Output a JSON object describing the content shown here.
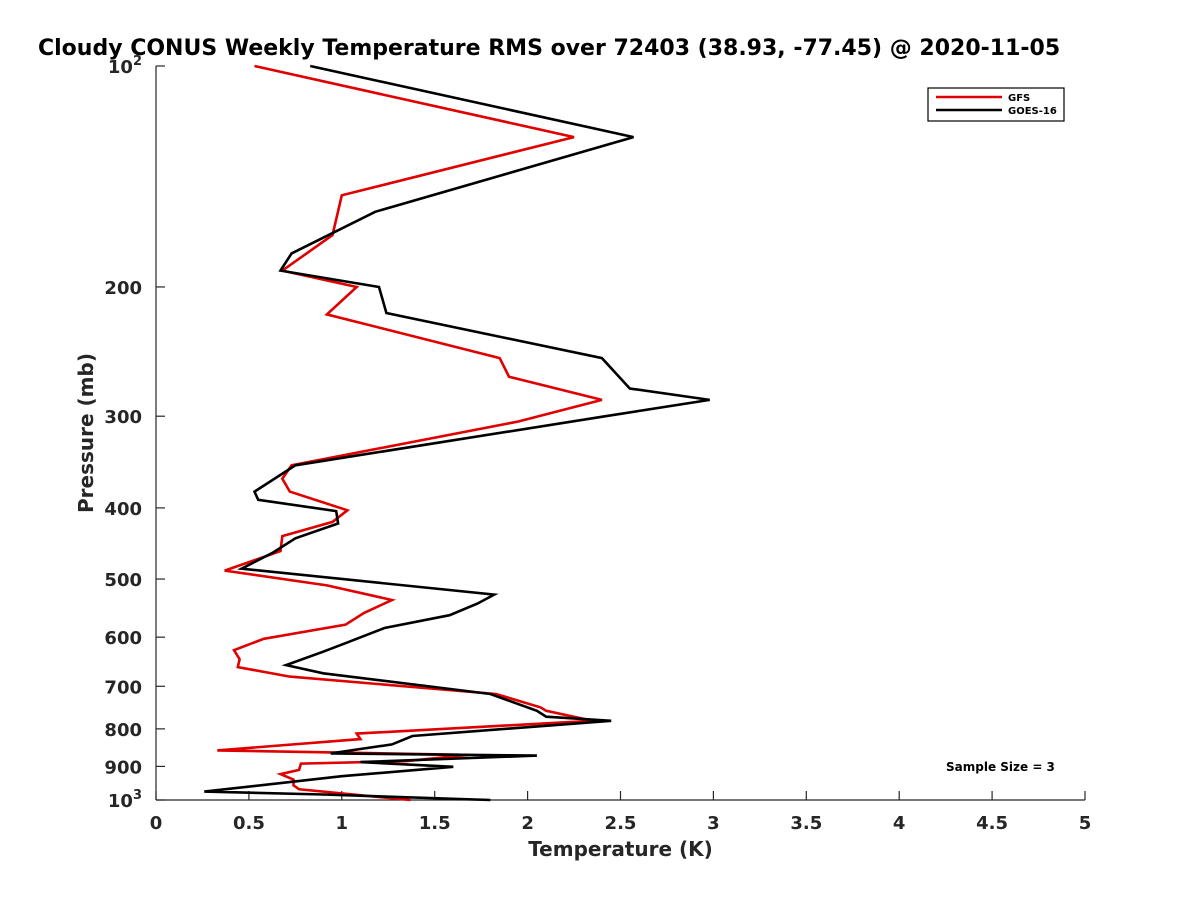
{
  "chart_data": {
    "type": "line",
    "title": "Cloudy CONUS Weekly Temperature RMS over 72403 (38.93, -77.45) @ 2020-11-05",
    "xlabel": "Temperature (K)",
    "ylabel": "Pressure (mb)",
    "xlim": [
      0,
      5
    ],
    "ylim": [
      100,
      1000
    ],
    "yscale": "log",
    "y_reversed": true,
    "x_ticks": [
      "0",
      "0.5",
      "1",
      "1.5",
      "2",
      "2.5",
      "3",
      "3.5",
      "4",
      "4.5",
      "5"
    ],
    "y_ticks": [
      {
        "value": 100,
        "base": "10",
        "exp": "2"
      },
      {
        "value": 200,
        "label": "200"
      },
      {
        "value": 300,
        "label": "300"
      },
      {
        "value": 400,
        "label": "400"
      },
      {
        "value": 500,
        "label": "500"
      },
      {
        "value": 600,
        "label": "600"
      },
      {
        "value": 700,
        "label": "700"
      },
      {
        "value": 800,
        "label": "800"
      },
      {
        "value": 900,
        "label": "900"
      },
      {
        "value": 1000,
        "base": "10",
        "exp": "3"
      }
    ],
    "legend_position": "top-right",
    "annotation": "Sample Size = 3",
    "series": [
      {
        "name": "GFS",
        "color": "#e00000",
        "points": [
          [
            0.53,
            100
          ],
          [
            2.25,
            125
          ],
          [
            1.0,
            150
          ],
          [
            0.95,
            170
          ],
          [
            0.68,
            190
          ],
          [
            1.08,
            200
          ],
          [
            0.92,
            218
          ],
          [
            1.85,
            250
          ],
          [
            1.9,
            265
          ],
          [
            2.4,
            285
          ],
          [
            1.95,
            305
          ],
          [
            0.73,
            350
          ],
          [
            0.68,
            365
          ],
          [
            0.72,
            380
          ],
          [
            1.03,
            403
          ],
          [
            0.95,
            418
          ],
          [
            0.68,
            437
          ],
          [
            0.67,
            458
          ],
          [
            0.37,
            487
          ],
          [
            0.92,
            510
          ],
          [
            1.27,
            534
          ],
          [
            1.12,
            556
          ],
          [
            1.02,
            577
          ],
          [
            0.58,
            603
          ],
          [
            0.42,
            625
          ],
          [
            0.45,
            643
          ],
          [
            0.44,
            659
          ],
          [
            0.72,
            679
          ],
          [
            1.83,
            717
          ],
          [
            2.07,
            748
          ],
          [
            2.1,
            756
          ],
          [
            2.35,
            780
          ],
          [
            1.08,
            812
          ],
          [
            1.1,
            826
          ],
          [
            0.33,
            856
          ],
          [
            1.68,
            868
          ],
          [
            1.35,
            885
          ],
          [
            0.78,
            892
          ],
          [
            0.77,
            910
          ],
          [
            0.67,
            922
          ],
          [
            0.74,
            938
          ],
          [
            0.74,
            955
          ],
          [
            0.77,
            967
          ],
          [
            1.37,
            1000
          ]
        ]
      },
      {
        "name": "GOES-16",
        "color": "#000000",
        "points": [
          [
            0.83,
            100
          ],
          [
            2.57,
            125
          ],
          [
            1.18,
            158
          ],
          [
            0.73,
            180
          ],
          [
            0.67,
            190
          ],
          [
            1.2,
            200
          ],
          [
            1.24,
            217
          ],
          [
            2.4,
            250
          ],
          [
            2.55,
            275
          ],
          [
            2.98,
            285
          ],
          [
            2.42,
            300
          ],
          [
            0.75,
            350
          ],
          [
            0.53,
            380
          ],
          [
            0.55,
            390
          ],
          [
            0.97,
            404
          ],
          [
            0.98,
            420
          ],
          [
            0.75,
            440
          ],
          [
            0.63,
            460
          ],
          [
            0.46,
            484
          ],
          [
            1.82,
            525
          ],
          [
            1.73,
            540
          ],
          [
            1.58,
            560
          ],
          [
            1.23,
            583
          ],
          [
            1.03,
            610
          ],
          [
            0.9,
            628
          ],
          [
            0.7,
            655
          ],
          [
            0.9,
            672
          ],
          [
            1.8,
            717
          ],
          [
            2.05,
            756
          ],
          [
            2.1,
            770
          ],
          [
            2.45,
            780
          ],
          [
            1.38,
            818
          ],
          [
            1.27,
            840
          ],
          [
            0.94,
            864
          ],
          [
            2.05,
            870
          ],
          [
            1.1,
            888
          ],
          [
            1.6,
            901
          ],
          [
            1.0,
            928
          ],
          [
            0.26,
            974
          ],
          [
            0.9,
            983
          ],
          [
            1.8,
            1000
          ]
        ]
      }
    ]
  }
}
